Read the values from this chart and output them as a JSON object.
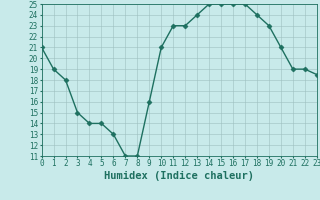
{
  "xlabel": "Humidex (Indice chaleur)",
  "x": [
    0,
    1,
    2,
    3,
    4,
    5,
    6,
    7,
    8,
    9,
    10,
    11,
    12,
    13,
    14,
    15,
    16,
    17,
    18,
    19,
    20,
    21,
    22,
    23
  ],
  "y": [
    21,
    19,
    18,
    15,
    14,
    14,
    13,
    11,
    11,
    16,
    21,
    23,
    23,
    24,
    25,
    25,
    25,
    25,
    24,
    23,
    21,
    19,
    19,
    18.5
  ],
  "line_color": "#1e7060",
  "marker": "D",
  "marker_size": 2.5,
  "background_color": "#c8eaea",
  "grid_color": "#9dbfbf",
  "ylim": [
    11,
    25
  ],
  "xlim": [
    0,
    23
  ],
  "yticks": [
    11,
    12,
    13,
    14,
    15,
    16,
    17,
    18,
    19,
    20,
    21,
    22,
    23,
    24,
    25
  ],
  "xticks": [
    0,
    1,
    2,
    3,
    4,
    5,
    6,
    7,
    8,
    9,
    10,
    11,
    12,
    13,
    14,
    15,
    16,
    17,
    18,
    19,
    20,
    21,
    22,
    23
  ],
  "xtick_labels": [
    "0",
    "1",
    "2",
    "3",
    "4",
    "5",
    "6",
    "7",
    "8",
    "9",
    "10",
    "11",
    "12",
    "13",
    "14",
    "15",
    "16",
    "17",
    "18",
    "19",
    "20",
    "21",
    "22",
    "23"
  ],
  "tick_fontsize": 5.5,
  "xlabel_fontsize": 7.5,
  "line_width": 1.0
}
